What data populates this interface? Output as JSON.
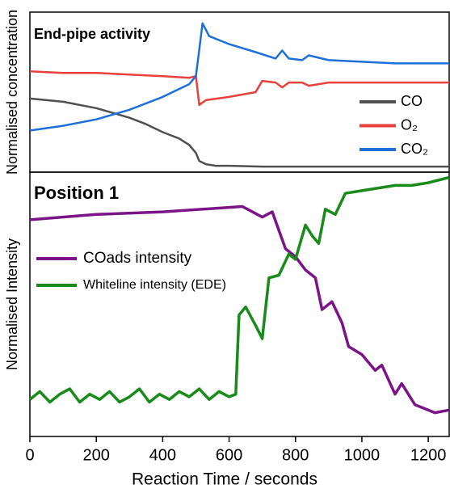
{
  "chart_data": [
    {
      "type": "line",
      "title": "End-pipe activity",
      "ylabel": "Normalised concentration",
      "xlim": [
        0,
        1263
      ],
      "ylim": [
        0,
        1
      ],
      "series": [
        {
          "name": "CO",
          "color": "#505050",
          "x": [
            0,
            100,
            200,
            250,
            300,
            350,
            400,
            450,
            480,
            500,
            510,
            530,
            560,
            600,
            700,
            800,
            900,
            1000,
            1100,
            1263
          ],
          "values": [
            0.46,
            0.44,
            0.4,
            0.37,
            0.34,
            0.3,
            0.25,
            0.21,
            0.17,
            0.12,
            0.07,
            0.05,
            0.04,
            0.04,
            0.035,
            0.035,
            0.035,
            0.035,
            0.035,
            0.035
          ]
        },
        {
          "name": "O₂",
          "color": "#e8413c",
          "x": [
            0,
            100,
            200,
            300,
            400,
            480,
            500,
            510,
            530,
            600,
            680,
            700,
            740,
            760,
            780,
            820,
            840,
            900,
            1000,
            1100,
            1263
          ],
          "values": [
            0.63,
            0.62,
            0.62,
            0.61,
            0.6,
            0.59,
            0.6,
            0.42,
            0.45,
            0.47,
            0.5,
            0.57,
            0.56,
            0.53,
            0.56,
            0.56,
            0.54,
            0.56,
            0.56,
            0.56,
            0.56
          ]
        },
        {
          "name": "CO₂",
          "color": "#1f6fd9",
          "x": [
            0,
            100,
            200,
            300,
            400,
            480,
            500,
            520,
            540,
            600,
            680,
            740,
            760,
            780,
            820,
            840,
            900,
            1000,
            1100,
            1263
          ],
          "values": [
            0.26,
            0.29,
            0.33,
            0.39,
            0.47,
            0.55,
            0.6,
            0.93,
            0.85,
            0.8,
            0.75,
            0.71,
            0.76,
            0.71,
            0.7,
            0.73,
            0.7,
            0.69,
            0.68,
            0.68
          ]
        }
      ],
      "legend": "lower right"
    },
    {
      "type": "line",
      "title": "Position 1",
      "ylabel": "Normalised Intensity",
      "xlabel": "Reaction Time / seconds",
      "xlim": [
        0,
        1263
      ],
      "ylim": [
        0,
        1
      ],
      "xticks": [
        0,
        200,
        400,
        600,
        800,
        1000,
        1200
      ],
      "series": [
        {
          "name": "COads intensity",
          "color": "#7b1487",
          "x": [
            0,
            200,
            400,
            640,
            700,
            730,
            770,
            800,
            830,
            860,
            880,
            910,
            940,
            960,
            1000,
            1040,
            1060,
            1100,
            1120,
            1160,
            1220,
            1263
          ],
          "values": [
            0.82,
            0.84,
            0.85,
            0.87,
            0.83,
            0.85,
            0.71,
            0.68,
            0.63,
            0.6,
            0.48,
            0.51,
            0.43,
            0.34,
            0.31,
            0.25,
            0.27,
            0.16,
            0.2,
            0.12,
            0.09,
            0.1
          ]
        },
        {
          "name": "Whiteline intensity (EDE)",
          "color": "#1a8a1a",
          "x": [
            0,
            30,
            60,
            90,
            120,
            150,
            180,
            210,
            240,
            270,
            300,
            330,
            360,
            390,
            420,
            450,
            480,
            510,
            540,
            570,
            600,
            620,
            630,
            650,
            680,
            700,
            720,
            750,
            780,
            800,
            830,
            850,
            870,
            890,
            920,
            950,
            1000,
            1050,
            1100,
            1150,
            1200,
            1263
          ],
          "values": [
            0.14,
            0.17,
            0.13,
            0.16,
            0.18,
            0.13,
            0.16,
            0.14,
            0.17,
            0.13,
            0.15,
            0.18,
            0.13,
            0.16,
            0.14,
            0.17,
            0.15,
            0.18,
            0.14,
            0.17,
            0.15,
            0.16,
            0.46,
            0.49,
            0.42,
            0.37,
            0.6,
            0.61,
            0.69,
            0.67,
            0.8,
            0.76,
            0.73,
            0.86,
            0.84,
            0.92,
            0.93,
            0.94,
            0.95,
            0.95,
            0.96,
            0.98
          ]
        }
      ],
      "legend": "center left"
    }
  ]
}
